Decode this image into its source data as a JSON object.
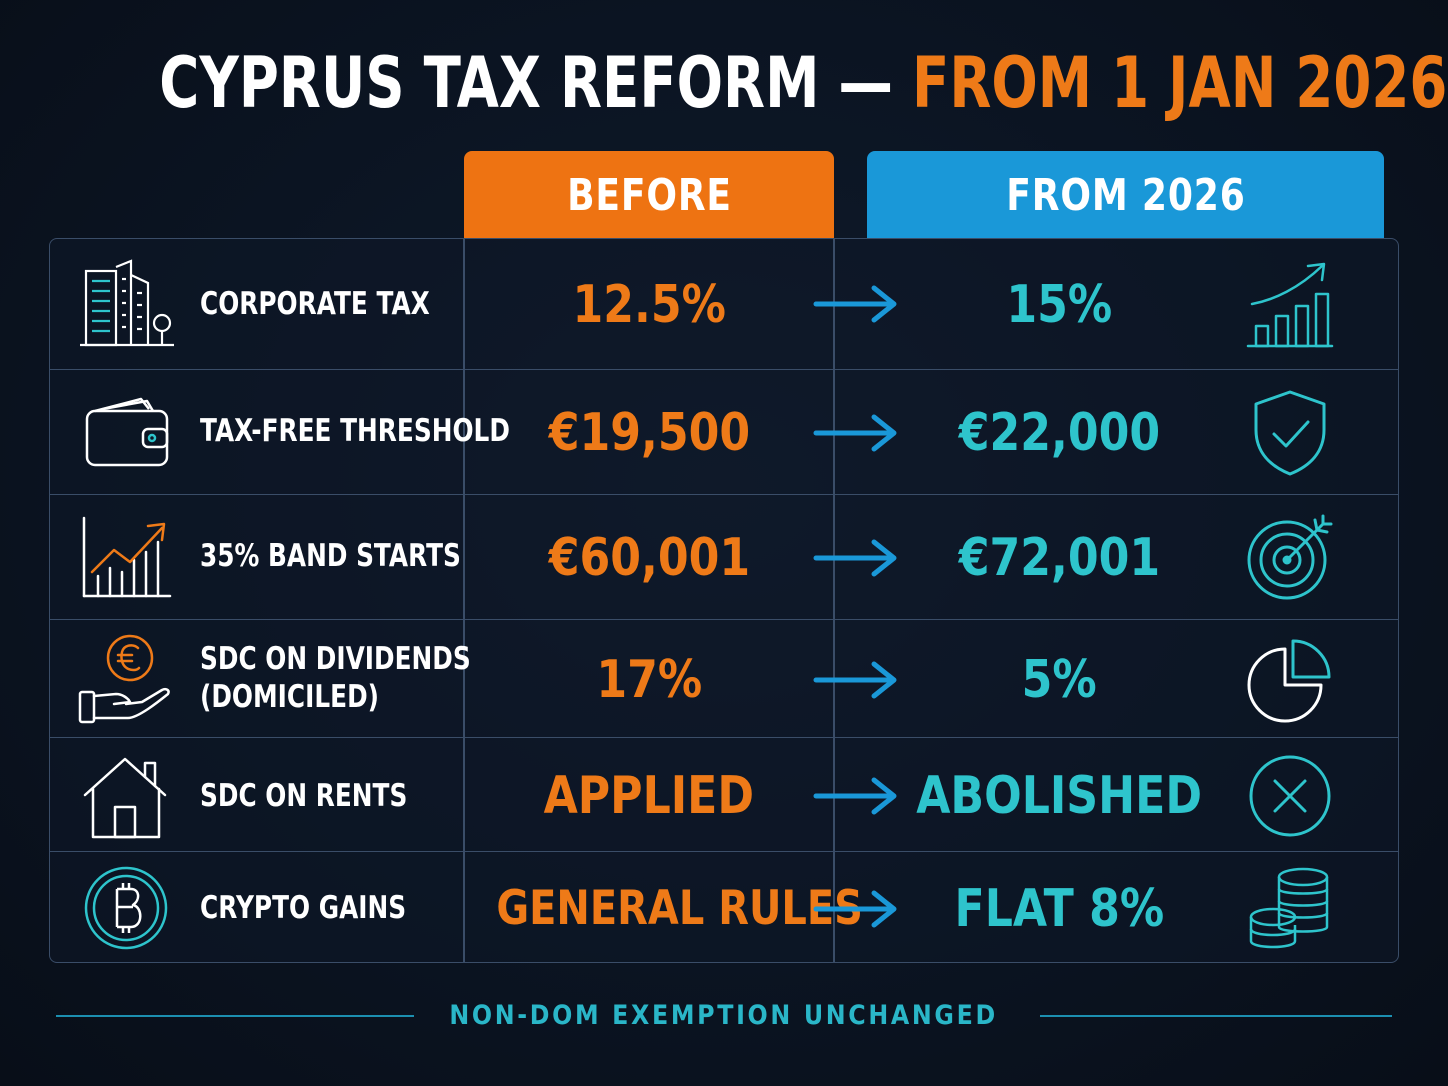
{
  "title": {
    "part1": "CYPRUS TAX REFORM — ",
    "part2": "FROM 1 JAN 2026"
  },
  "columns": {
    "before": "BEFORE",
    "after": "FROM 2026"
  },
  "rows": [
    {
      "label": "CORPORATE TAX",
      "before": "12.5%",
      "after": "15%",
      "left_icon": "office-building-icon",
      "right_icon": "bar-chart-growth-icon"
    },
    {
      "label": "TAX-FREE THRESHOLD",
      "before": "€19,500",
      "after": "€22,000",
      "left_icon": "wallet-icon",
      "right_icon": "shield-check-icon"
    },
    {
      "label": "35% BAND STARTS",
      "before": "€60,001",
      "after": "€72,001",
      "left_icon": "trend-chart-icon",
      "right_icon": "target-icon"
    },
    {
      "label": "SDC ON DIVIDENDS\n(DOMICILED)",
      "label_line1": "SDC ON DIVIDENDS",
      "label_line2": "(DOMICILED)",
      "before": "17%",
      "after": "5%",
      "left_icon": "euro-hand-icon",
      "right_icon": "pie-chart-icon"
    },
    {
      "label": "SDC ON RENTS",
      "before": "APPLIED",
      "after": "ABOLISHED",
      "left_icon": "house-icon",
      "right_icon": "x-circle-icon"
    },
    {
      "label": "CRYPTO GAINS",
      "before": "GENERAL RULES",
      "after": "FLAT 8%",
      "left_icon": "bitcoin-icon",
      "right_icon": "coin-stack-icon"
    }
  ],
  "footer": "NON-DOM EXEMPTION UNCHANGED",
  "colors": {
    "background": "#0a111d",
    "orange": "#ee7312",
    "blue": "#1a98d8",
    "teal": "#2ec4cc",
    "border": "#3a4d68"
  }
}
